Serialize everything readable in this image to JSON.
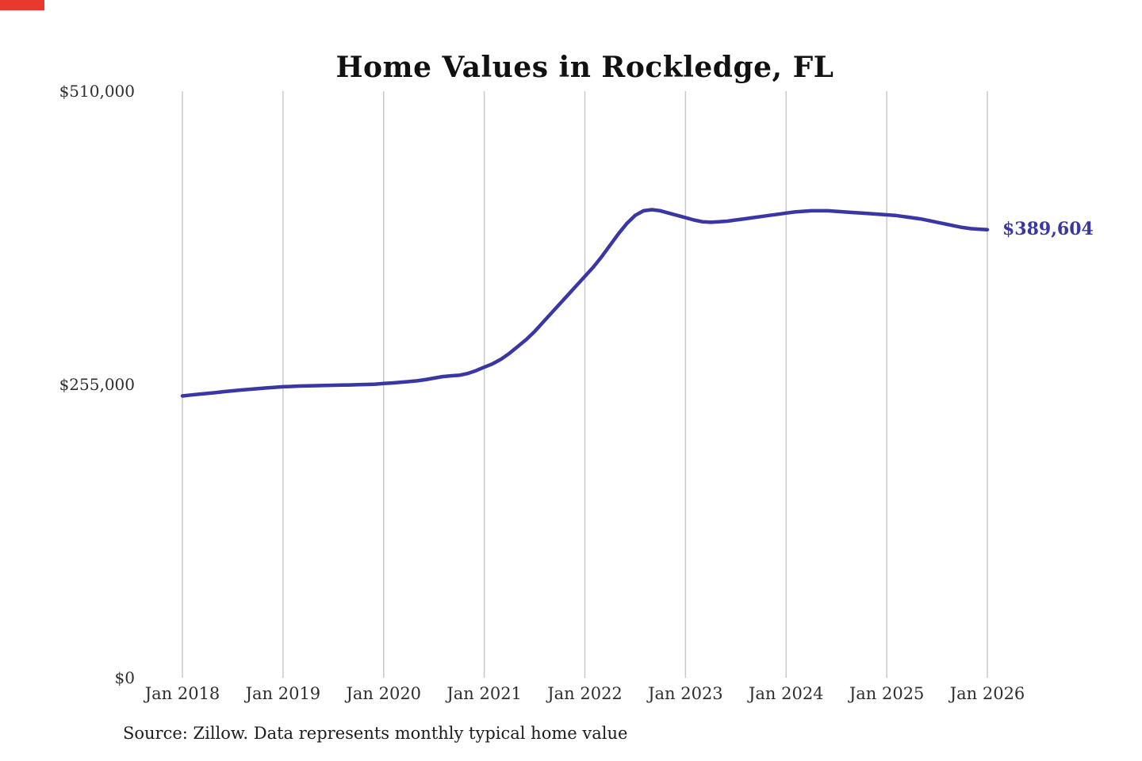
{
  "chart_data": {
    "type": "line",
    "title": "Home Values in Rockledge, FL",
    "source": "Source: Zillow. Data represents monthly typical home value",
    "end_label": "$389,604",
    "end_value": 389604,
    "x_monthly_start": "2018-01",
    "x_monthly_end": "2026-01",
    "x_tick_labels": [
      "Jan 2018",
      "Jan 2019",
      "Jan 2020",
      "Jan 2021",
      "Jan 2022",
      "Jan 2023",
      "Jan 2024",
      "Jan 2025",
      "Jan 2026"
    ],
    "x_tick_indices": [
      0,
      12,
      24,
      36,
      48,
      60,
      72,
      84,
      96
    ],
    "y_ticks": [
      {
        "value": 0,
        "label": "$0"
      },
      {
        "value": 255000,
        "label": "$255,000"
      },
      {
        "value": 510000,
        "label": "$510,000"
      }
    ],
    "ylim": [
      0,
      510000
    ],
    "grid": "vertical-only",
    "legend": "none",
    "line_color": "#3a37a4",
    "grid_color": "#c9c9c9",
    "tick_color": "#2e2e2e",
    "values": [
      245000,
      245800,
      246500,
      247300,
      248000,
      248800,
      249500,
      250200,
      250800,
      251400,
      252000,
      252500,
      253000,
      253300,
      253600,
      253800,
      254000,
      254200,
      254300,
      254500,
      254600,
      254800,
      255000,
      255300,
      255800,
      256300,
      256900,
      257500,
      258200,
      259200,
      260500,
      261800,
      262500,
      263000,
      264500,
      267000,
      270000,
      273000,
      277000,
      282000,
      288000,
      294000,
      301000,
      309000,
      317000,
      325000,
      333000,
      341000,
      349000,
      357000,
      366000,
      376000,
      386000,
      395000,
      402000,
      406000,
      407000,
      406000,
      404000,
      402000,
      400000,
      398000,
      396500,
      396000,
      396500,
      397000,
      398000,
      399000,
      400000,
      401000,
      402000,
      403000,
      404000,
      405000,
      405500,
      406000,
      406000,
      406000,
      405500,
      405000,
      404500,
      404000,
      403500,
      403000,
      402500,
      402000,
      401000,
      400000,
      399000,
      397500,
      396000,
      394500,
      393000,
      391500,
      390500,
      390000,
      389604
    ]
  }
}
